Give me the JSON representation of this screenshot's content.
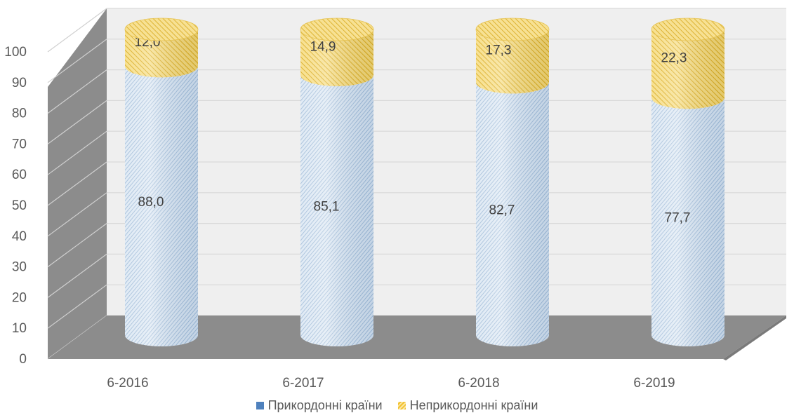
{
  "chart_data": {
    "type": "bar",
    "stacked": true,
    "style": "3d-cylinder",
    "categories": [
      "6-2016",
      "6-2017",
      "6-2018",
      "6-2019"
    ],
    "series": [
      {
        "name": "Прикордонні країни",
        "values": [
          88.0,
          85.1,
          82.7,
          77.7
        ],
        "labels": [
          "88,0",
          "85,1",
          "82,7",
          "77,7"
        ],
        "color": "#c9dbee",
        "pattern": "diagonal-blue"
      },
      {
        "name": "Неприкордонні країни",
        "values": [
          12.0,
          14.9,
          17.3,
          22.3
        ],
        "labels": [
          "12,0",
          "14,9",
          "17,3",
          "22,3"
        ],
        "color": "#f2d16a",
        "pattern": "diagonal-gold"
      }
    ],
    "ylim": [
      0,
      100
    ],
    "yticks": [
      "0",
      "10",
      "20",
      "30",
      "40",
      "50",
      "60",
      "70",
      "80",
      "90",
      "100"
    ],
    "grid": true,
    "legend_position": "bottom",
    "colors": {
      "wall": "#efefef",
      "floor": "#8c8c8c",
      "side_wall": "#8c8c8c",
      "grid": "#d9d9d9"
    }
  }
}
